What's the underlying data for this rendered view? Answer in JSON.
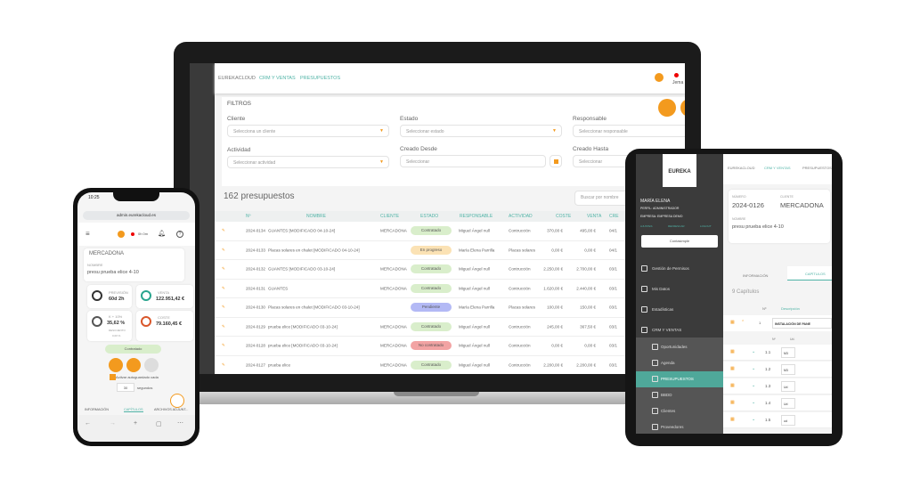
{
  "laptop": {
    "breadcrumb": [
      "EUREKACLOUD",
      "CRM Y VENTAS",
      "PRESUPUESTOS"
    ],
    "user_name": "Jema",
    "filters": {
      "title": "FILTROS",
      "cliente": {
        "label": "Cliente",
        "placeholder": "Selecciona un cliente"
      },
      "estado": {
        "label": "Estado",
        "placeholder": "Seleccionar estado"
      },
      "responsable": {
        "label": "Responsable",
        "placeholder": "Seleccionar responsable"
      },
      "actividad": {
        "label": "Actividad",
        "placeholder": "Seleccionar actividad"
      },
      "desde": {
        "label": "Creado Desde",
        "placeholder": "Seleccionar"
      },
      "hasta": {
        "label": "Creado Hasta",
        "placeholder": "Seleccionar"
      }
    },
    "count": "162 presupuestos",
    "search_placeholder": "Buscar por nombre",
    "columns": [
      "Nº",
      "NOMBRE",
      "CLIENTE",
      "ESTADO",
      "RESPONSABLE",
      "ACTIVIDAD",
      "COSTE",
      "VENTA",
      "CRE"
    ],
    "rows": [
      {
        "num": "2024-0134",
        "nombre": "GUANTES [MODIFICADO 04-10-24]",
        "cliente": "MERCADONA",
        "estado": "Contratado",
        "resp": "Miguel Ángel null",
        "act": "Contrucción",
        "coste": "370,00 €",
        "venta": "495,00 €",
        "fecha": "04/1"
      },
      {
        "num": "2024-0133",
        "nombre": "Placas solares en chalet [MODIFICADO 04-10-24]",
        "cliente": "",
        "estado": "En progreso",
        "resp": "María Elena Parrilla",
        "act": "Placas solares",
        "coste": "0,00 €",
        "venta": "0,00 €",
        "fecha": "04/1"
      },
      {
        "num": "2024-0132",
        "nombre": "GUANTES [MODIFICADO 03-10-24]",
        "cliente": "MERCADONA",
        "estado": "Contratado",
        "resp": "Miguel Ángel null",
        "act": "Contrucción",
        "coste": "2.250,00 €",
        "venta": "2.700,00 €",
        "fecha": "03/1"
      },
      {
        "num": "2024-0131",
        "nombre": "GUANTES",
        "cliente": "MERCADONA",
        "estado": "Contratado",
        "resp": "Miguel Ángel null",
        "act": "Contrucción",
        "coste": "1.620,00 €",
        "venta": "2.440,00 €",
        "fecha": "03/1"
      },
      {
        "num": "2024-0130",
        "nombre": "Placas solares en chalet [MODIFICADO 03-10-24]",
        "cliente": "",
        "estado": "Pendiente",
        "resp": "María Elena Parrilla",
        "act": "Placas solares",
        "coste": "100,00 €",
        "venta": "150,00 €",
        "fecha": "03/1"
      },
      {
        "num": "2024-0129",
        "nombre": "prueba elice [MODIFICADO 03-10-24]",
        "cliente": "MERCADONA",
        "estado": "Contratado",
        "resp": "Miguel Ángel null",
        "act": "Contrucción",
        "coste": "245,00 €",
        "venta": "367,50 €",
        "fecha": "03/1"
      },
      {
        "num": "2024-0128",
        "nombre": "prueba elice [MODIFICADO 03-10-24]",
        "cliente": "MERCADONA",
        "estado": "No contratado",
        "resp": "Miguel Ángel null",
        "act": "Contrucción",
        "coste": "0,00 €",
        "venta": "0,00 €",
        "fecha": "03/1"
      },
      {
        "num": "2024-0127",
        "nombre": "prueba elice",
        "cliente": "MERCADONA",
        "estado": "Contratado",
        "resp": "Miguel Ángel null",
        "act": "Contrucción",
        "coste": "2.200,00 €",
        "venta": "2.200,00 €",
        "fecha": "03/1"
      }
    ],
    "status_colors": {
      "Contratado": "#d9eecb",
      "En progreso": "#fbe2b4",
      "Pendiente": "#b3b9f5",
      "No contratado": "#f2a3a3"
    }
  },
  "phone": {
    "time": "10:25",
    "url": "admin.eurekacloud.es",
    "timer": "0h 0m",
    "cliente": "MERCADONA",
    "nombre_label": "NOMBRE",
    "nombre": "presu prueba elice 4-10",
    "stats": [
      {
        "label": "PREVISIÓN",
        "value": "60d 2h"
      },
      {
        "label": "VENTA",
        "value": "122.951,42 €"
      },
      {
        "label": "K + 10%",
        "value": "35,62 %",
        "sub": "DESCUENTO",
        "sub2": "0,00 %"
      },
      {
        "label": "COSTE",
        "value": "79.160,45 €"
      }
    ],
    "status": "Contratado",
    "autosave": "Activar autoguardado cada",
    "seconds": "30",
    "seconds_label": "segundos",
    "tabs": [
      "INFORMACIÓN",
      "CAPÍTULOS",
      "ARCHIVOS ADJUNT..."
    ]
  },
  "tablet": {
    "logo": "EUREKA",
    "user": "MARÍA ELENA",
    "perfil": "PERFIL: ADMINISTRADOR",
    "empresa": "EMPRESA: EMPRESA DEMO",
    "links": [
      "AJUSTES",
      "REFRESCAR",
      "LOGOUT"
    ],
    "contasimple": "Contasimple",
    "menu": [
      "Gestión de Permisos",
      "Mis Datos",
      "Estadísticas",
      "CRM Y VENTAS",
      "Oportunidades",
      "Agenda",
      "PRESUPUESTOS",
      "BBDD",
      "Clientes",
      "Proveedores"
    ],
    "breadcrumb": [
      "EUREKACLOUD",
      "CRM Y VENTAS",
      "PRESUPUESTOS"
    ],
    "numero_label": "NÚMERO",
    "numero": "2024-0126",
    "cliente_label": "CLIENTE",
    "cliente": "MERCADONA",
    "nombre_label": "NOMBRE",
    "nombre": "presu prueba elice 4-10",
    "tabs": [
      "INFORMACIÓN",
      "CAPÍTULOS"
    ],
    "capitulos": "9 Capítulos",
    "head": [
      "Nº",
      "Descripción"
    ],
    "chapter": {
      "num": "1",
      "desc": "INSTALACIÓN DE PANE"
    },
    "subhead": [
      "Nº",
      "Ud."
    ],
    "items": [
      {
        "num": "1.1",
        "ud": "M3"
      },
      {
        "num": "1.2",
        "ud": "M3"
      },
      {
        "num": "1.3",
        "ud": "Ud"
      },
      {
        "num": "1.4",
        "ud": "Ud"
      },
      {
        "num": "1.5",
        "ud": "ud"
      }
    ]
  }
}
